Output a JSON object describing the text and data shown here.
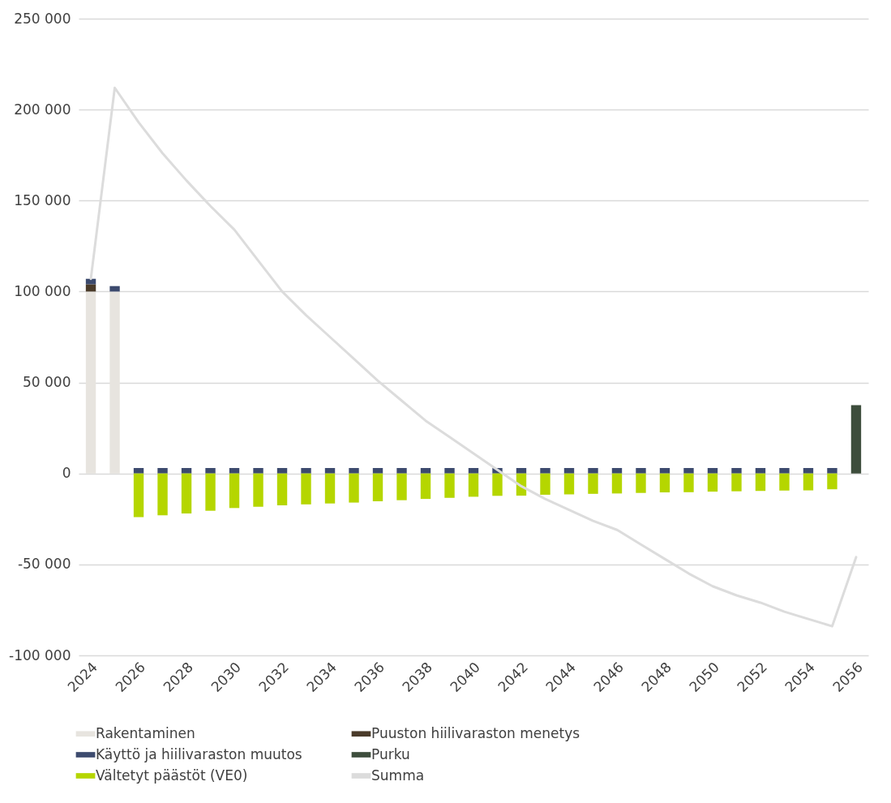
{
  "chart_data": {
    "type": "bar",
    "stacked": true,
    "grid": "y",
    "legend": "bottom",
    "categories": [
      "2024",
      null,
      "2026",
      null,
      "2028",
      null,
      "2030",
      null,
      "2032",
      null,
      "2034",
      null,
      "2036",
      null,
      "2038",
      null,
      "2040",
      null,
      "2042",
      null,
      "2044",
      null,
      "2046",
      null,
      "2048",
      null,
      "2050",
      null,
      "2052",
      null,
      "2054",
      null,
      "2056"
    ],
    "ylim": [
      -100000,
      250000
    ],
    "yticks": [
      {
        "value": -100000,
        "label": "-100 000"
      },
      {
        "value": -50000,
        "label": "-50 000"
      },
      0,
      {
        "value": 50000,
        "label": "50 000"
      },
      {
        "value": 100000,
        "label": "100 000"
      },
      {
        "value": 150000,
        "label": "150 000"
      },
      {
        "value": 200000,
        "label": "200 000"
      },
      {
        "value": 250000,
        "label": "250 000"
      }
    ],
    "series": [
      {
        "name": "Rakentaminen",
        "color": "#e7e4df",
        "values": [
          100000,
          100000,
          null,
          null,
          null,
          null,
          null,
          null,
          null,
          null,
          null,
          null,
          null,
          null,
          null,
          null,
          null,
          null,
          null,
          null,
          null,
          null,
          null,
          null,
          null,
          null,
          null,
          null,
          null,
          null,
          null,
          null,
          null
        ]
      },
      {
        "name": "Puuston hiilivaraston menetys",
        "color": "#4a3b2a",
        "values": [
          4000,
          null,
          null,
          null,
          null,
          null,
          null,
          null,
          null,
          null,
          null,
          null,
          null,
          null,
          null,
          null,
          null,
          null,
          null,
          null,
          null,
          null,
          null,
          null,
          null,
          null,
          null,
          null,
          null,
          null,
          null,
          null,
          null
        ]
      },
      {
        "name": "Käyttö ja hiilivaraston muutos",
        "color": "#3c4a6e",
        "values": [
          3000,
          3000,
          3000,
          3000,
          3000,
          3000,
          3000,
          3000,
          3000,
          3000,
          3000,
          3000,
          3000,
          3000,
          3000,
          3000,
          3000,
          3000,
          3000,
          3000,
          3000,
          3000,
          3000,
          3000,
          3000,
          3000,
          3000,
          3000,
          3000,
          3000,
          3000,
          3000,
          null
        ]
      },
      {
        "name": "Purku",
        "color": "#3d4d3c",
        "values": [
          null,
          null,
          null,
          null,
          null,
          null,
          null,
          null,
          null,
          null,
          null,
          null,
          null,
          null,
          null,
          null,
          null,
          null,
          null,
          null,
          null,
          null,
          null,
          null,
          null,
          null,
          null,
          null,
          null,
          null,
          null,
          null,
          37500
        ]
      },
      {
        "name": "Vältetyt päästöt (VE0)",
        "color": "#b5d600",
        "values": [
          null,
          null,
          -24000,
          -23000,
          -22000,
          -20500,
          -19000,
          -18300,
          -17500,
          -17000,
          -16500,
          -16000,
          -15300,
          -14700,
          -14000,
          -13400,
          -12800,
          -12300,
          -12200,
          -11700,
          -11500,
          -11200,
          -11000,
          -10700,
          -10400,
          -10300,
          -10000,
          -9800,
          -9600,
          -9400,
          -9300,
          -8700,
          null
        ]
      },
      {
        "name": "Summa",
        "type": "line",
        "color": "#dcdcdc",
        "line_style": "solid",
        "marker": "none",
        "values": [
          107000,
          212000,
          193000,
          176000,
          161000,
          147000,
          134000,
          117000,
          100000,
          87000,
          75000,
          63000,
          51000,
          40000,
          29000,
          20000,
          11000,
          2000,
          -7000,
          -14000,
          -20000,
          -26000,
          -31000,
          -39000,
          -47000,
          -55000,
          -62000,
          -67000,
          -71000,
          -76000,
          -80000,
          -84000,
          -46000
        ]
      }
    ]
  }
}
